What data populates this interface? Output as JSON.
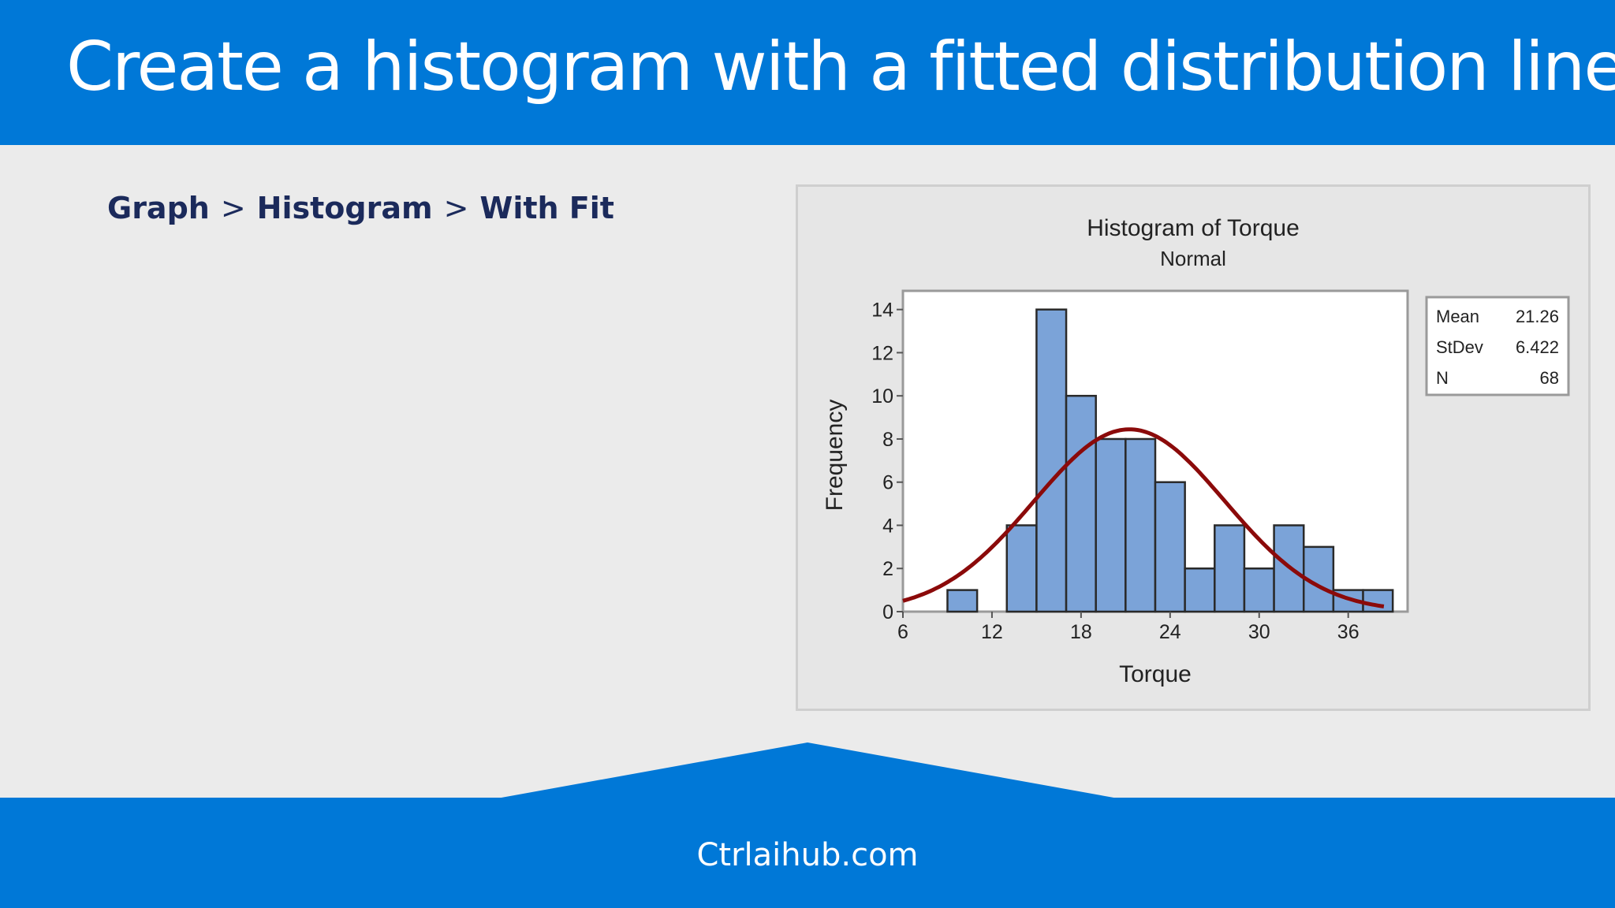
{
  "header": {
    "title": "Create a histogram with a fitted distribution line"
  },
  "breadcrumb": {
    "items": [
      "Graph",
      "Histogram",
      "With Fit"
    ],
    "separator": ">"
  },
  "footer": {
    "text": "Ctrlaihub.com"
  },
  "colors": {
    "brand_blue": "#0078d7",
    "bar_fill": "#7ba3d8",
    "fit_line": "#8b0a0a",
    "breadcrumb_text": "#1b2a5b"
  },
  "chart_data": {
    "type": "bar",
    "title": "Histogram of Torque",
    "subtitle": "Normal",
    "xlabel": "Torque",
    "ylabel": "Frequency",
    "xlim": [
      6,
      40
    ],
    "ylim": [
      0,
      14.5
    ],
    "xticks": [
      6,
      12,
      18,
      24,
      30,
      36
    ],
    "yticks": [
      0,
      2,
      4,
      6,
      8,
      10,
      12,
      14
    ],
    "bin_width": 2,
    "bins": [
      {
        "start": 9,
        "end": 11,
        "count": 1
      },
      {
        "start": 11,
        "end": 13,
        "count": 0
      },
      {
        "start": 13,
        "end": 15,
        "count": 4
      },
      {
        "start": 15,
        "end": 17,
        "count": 14
      },
      {
        "start": 17,
        "end": 19,
        "count": 10
      },
      {
        "start": 19,
        "end": 21,
        "count": 8
      },
      {
        "start": 21,
        "end": 23,
        "count": 8
      },
      {
        "start": 23,
        "end": 25,
        "count": 6
      },
      {
        "start": 25,
        "end": 27,
        "count": 2
      },
      {
        "start": 27,
        "end": 29,
        "count": 4
      },
      {
        "start": 29,
        "end": 31,
        "count": 2
      },
      {
        "start": 31,
        "end": 33,
        "count": 4
      },
      {
        "start": 33,
        "end": 35,
        "count": 3
      },
      {
        "start": 35,
        "end": 37,
        "count": 1
      },
      {
        "start": 37,
        "end": 39,
        "count": 1
      }
    ],
    "fit": {
      "distribution": "Normal",
      "mean": 21.26,
      "stdev": 6.422,
      "n": 68
    },
    "legend": {
      "position": "right",
      "rows": [
        {
          "label": "Mean",
          "value": "21.26"
        },
        {
          "label": "StDev",
          "value": "6.422"
        },
        {
          "label": "N",
          "value": "68"
        }
      ]
    },
    "grid": false
  }
}
